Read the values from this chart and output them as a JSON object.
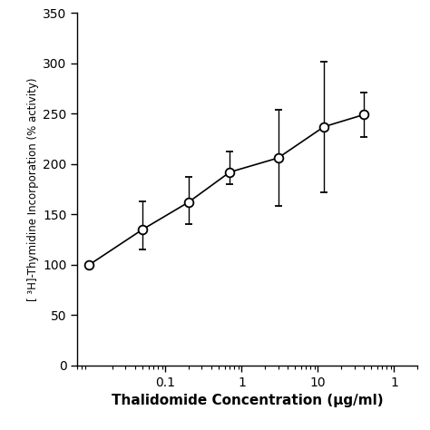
{
  "x": [
    0.01,
    0.05,
    0.2,
    0.7,
    3,
    12,
    40
  ],
  "y": [
    100,
    135,
    162,
    192,
    206,
    237,
    249
  ],
  "yerr_low": [
    0,
    20,
    22,
    12,
    48,
    65,
    22
  ],
  "yerr_high": [
    0,
    28,
    25,
    20,
    48,
    65,
    22
  ],
  "xlabel": "Thalidomide Concentration (μg/ml)",
  "ylabel": "[ ³H]-Thymidine Incorporation (% activity)",
  "ylim": [
    0,
    350
  ],
  "yticks": [
    0,
    50,
    100,
    150,
    200,
    250,
    300,
    350
  ],
  "xlim_log": [
    0.007,
    200
  ],
  "background_color": "#ffffff",
  "line_color": "#000000",
  "marker_color": "#ffffff",
  "marker_edge_color": "#000000",
  "marker_size": 7,
  "line_width": 1.2
}
